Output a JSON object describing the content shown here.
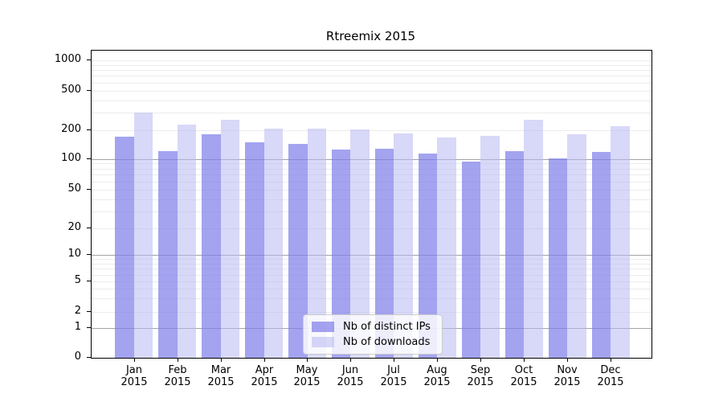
{
  "chart_data": {
    "type": "bar",
    "title": "Rtreemix 2015",
    "categories": [
      "Jan",
      "Feb",
      "Mar",
      "Apr",
      "May",
      "Jun",
      "Jul",
      "Aug",
      "Sep",
      "Oct",
      "Nov",
      "Dec"
    ],
    "x_tick_line2": "2015",
    "series": [
      {
        "name": "Nb of distinct IPs",
        "color": "#a3a3f0",
        "fill": "rgba(127,127,234,0.72)",
        "values": [
          172,
          120,
          180,
          148,
          143,
          124,
          128,
          113,
          94,
          121,
          101,
          118
        ]
      },
      {
        "name": "Nb of downloads",
        "color": "#d8d8f8",
        "fill": "rgba(184,184,242,0.55)",
        "values": [
          302,
          225,
          253,
          208,
          207,
          204,
          183,
          167,
          175,
          255,
          180,
          220
        ]
      }
    ],
    "y_ticks": [
      1000,
      500,
      200,
      100,
      50,
      20,
      10,
      5,
      2,
      1,
      0
    ],
    "yscale": "log-like",
    "ylim": [
      0,
      1200
    ],
    "grid": true,
    "legend_position": "lower center",
    "background": "#ffffff",
    "axis_color": "#000000",
    "major_grid_color": "#a3a3a3",
    "minor_grid_color": "#ececec"
  }
}
